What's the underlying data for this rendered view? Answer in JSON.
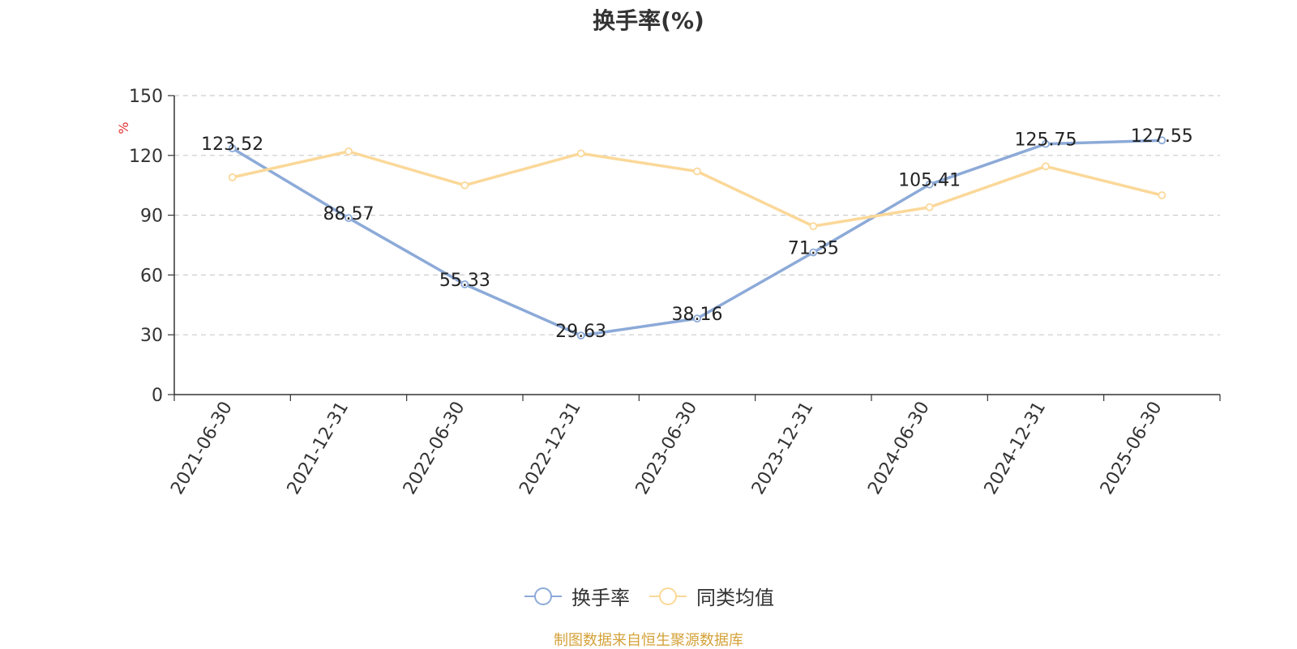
{
  "chart_data": {
    "type": "line",
    "title": "换手率(%)",
    "ylabel": "%",
    "xlabel": "",
    "categories": [
      "2021-06-30",
      "2021-12-31",
      "2022-06-30",
      "2022-12-31",
      "2023-06-30",
      "2023-12-31",
      "2024-06-30",
      "2024-12-31",
      "2025-06-30"
    ],
    "ylim": [
      0,
      150
    ],
    "yticks": [
      "0",
      "30",
      "60",
      "90",
      "120",
      "150"
    ],
    "grid": true,
    "legend_position": "bottom",
    "series": [
      {
        "name": "换手率",
        "color": "#8caad8",
        "labels": true,
        "values": [
          123.52,
          88.57,
          55.33,
          29.63,
          38.16,
          71.35,
          105.41,
          125.75,
          127.55
        ],
        "value_labels": [
          "123.52",
          "88.57",
          "55.33",
          "29.63",
          "38.16",
          "71.35",
          "105.41",
          "125.75",
          "127.55"
        ]
      },
      {
        "name": "同类均值",
        "color": "#fbd899",
        "labels": false,
        "values": [
          109,
          122,
          105,
          121,
          112,
          84.5,
          94,
          114.5,
          100
        ]
      }
    ],
    "source": "制图数据来自恒生聚源数据库",
    "source_color": "#d4a23a",
    "ylabel_color": "#e03030"
  }
}
